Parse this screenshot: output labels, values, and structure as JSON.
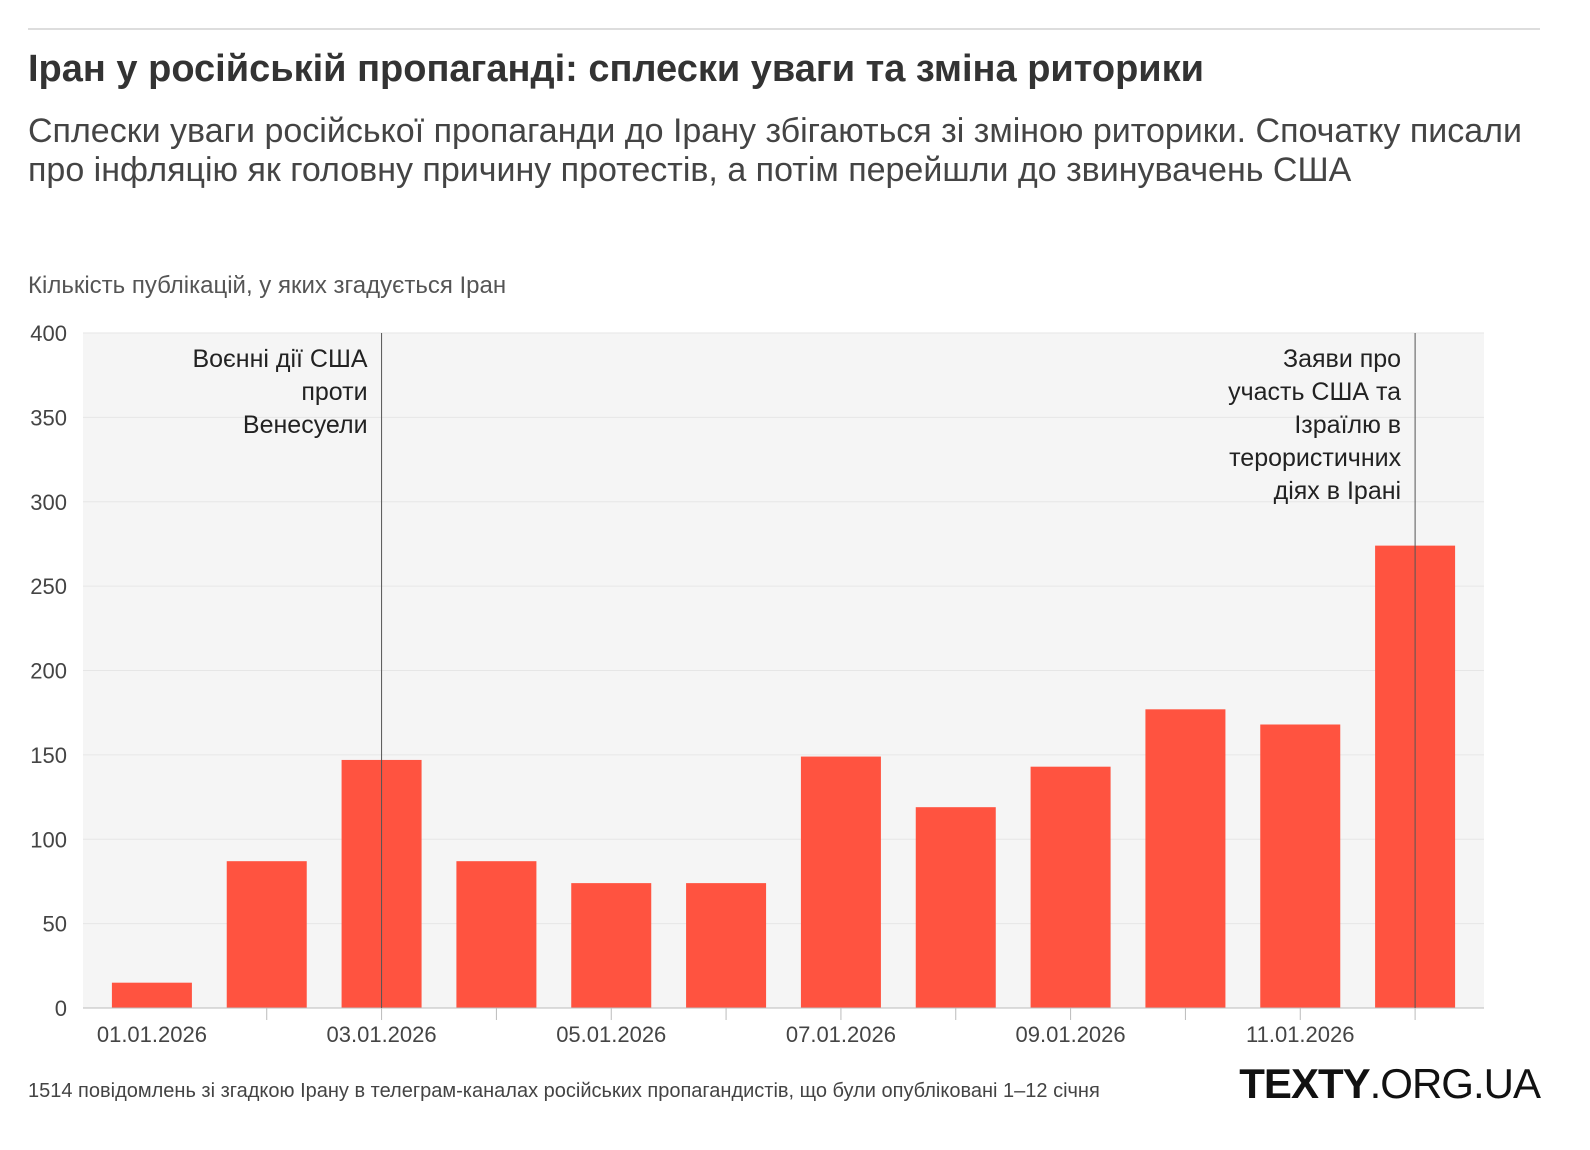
{
  "title": "Іран у російській пропаганді: сплески уваги та зміна риторики",
  "subtitle": "Сплески уваги російської пропаганди до Ірану збігаються зі зміною риторики. Спочатку писали про інфляцію як головну причину протестів, а потім перейшли до звинувачень США",
  "footnote": "1514 повідомлень зі згадкою Ірану в телеграм-каналах російських пропагандистів, що були опубліковані 1–12 січня",
  "logo": {
    "bold": "TEXTY",
    "rest": ".ORG.UA"
  },
  "chart_data": {
    "type": "bar",
    "title": "Іран у російській пропаганді: сплески уваги та зміна риторики",
    "ylabel": "Кількість публікацій, у яких згадується Іран",
    "xlabel": "",
    "categories": [
      "01.01.2026",
      "02.01.2026",
      "03.01.2026",
      "04.01.2026",
      "05.01.2026",
      "06.01.2026",
      "07.01.2026",
      "08.01.2026",
      "09.01.2026",
      "10.01.2026",
      "11.01.2026",
      "12.01.2026"
    ],
    "x_tick_labels": [
      "01.01.2026",
      "",
      "03.01.2026",
      "",
      "05.01.2026",
      "",
      "07.01.2026",
      "",
      "09.01.2026",
      "",
      "11.01.2026",
      ""
    ],
    "values": [
      15,
      87,
      147,
      87,
      74,
      74,
      149,
      119,
      143,
      177,
      168,
      274
    ],
    "ylim": [
      0,
      400
    ],
    "y_ticks": [
      0,
      50,
      100,
      150,
      200,
      250,
      300,
      350,
      400
    ],
    "grid": true,
    "bar_color": "#ff5340",
    "plot_background": "#f5f5f5",
    "annotations": [
      {
        "category": "03.01.2026",
        "lines": [
          "Воєнні дії США",
          "проти",
          "Венесуели"
        ]
      },
      {
        "category": "12.01.2026",
        "lines": [
          "Заяви про",
          "участь США та",
          "Ізраїлю в",
          "терористичних",
          "діях в Ірані"
        ]
      }
    ]
  }
}
